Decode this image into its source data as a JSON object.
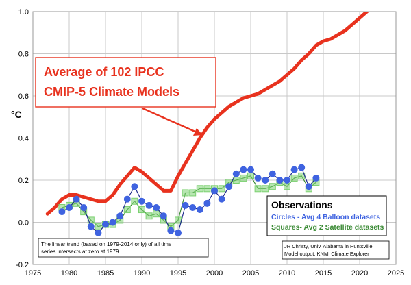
{
  "chart_data": {
    "type": "line",
    "ylabel": "°C",
    "xlim": [
      1975,
      2025
    ],
    "ylim": [
      -0.2,
      1.0
    ],
    "x_ticks": [
      "1975",
      "1980",
      "1985",
      "1990",
      "1995",
      "2000",
      "2005",
      "2010",
      "2015",
      "2020",
      "2025"
    ],
    "y_ticks": [
      "-0.2",
      "0.0",
      "0.2",
      "0.4",
      "0.6",
      "0.8",
      "1.0"
    ],
    "grid": true,
    "colors": {
      "models": "#e8321e",
      "balloons": "#3f63e0",
      "satellites": "#7cd171",
      "satellite_line": "#3a8a34",
      "balloon_line": "#1e2a8c"
    },
    "models_label": "Average of 102 IPCC\nCMIP-5 Climate Models",
    "series": [
      {
        "marker": "line",
        "x": [
          1977,
          1978,
          1979,
          1980,
          1981,
          1982,
          1983,
          1984,
          1985,
          1986,
          1987,
          1988,
          1989,
          1990,
          1991,
          1992,
          1993,
          1994,
          1995,
          1996,
          1997,
          1998,
          1999,
          2000,
          2001,
          2002,
          2003,
          2004,
          2005,
          2006,
          2007,
          2008,
          2009,
          2010,
          2011,
          2012,
          2013,
          2014,
          2015,
          2016,
          2017,
          2018,
          2019,
          2020,
          2021,
          2022
        ],
        "y": [
          0.04,
          0.07,
          0.11,
          0.13,
          0.13,
          0.12,
          0.11,
          0.1,
          0.1,
          0.13,
          0.18,
          0.22,
          0.26,
          0.24,
          0.21,
          0.18,
          0.15,
          0.15,
          0.22,
          0.28,
          0.34,
          0.4,
          0.45,
          0.49,
          0.52,
          0.55,
          0.57,
          0.59,
          0.6,
          0.61,
          0.63,
          0.65,
          0.67,
          0.7,
          0.73,
          0.77,
          0.8,
          0.84,
          0.86,
          0.87,
          0.89,
          0.91,
          0.94,
          0.97,
          1.0,
          1.03
        ]
      },
      {
        "marker": "circle",
        "x": [
          1979,
          1980,
          1981,
          1982,
          1983,
          1984,
          1985,
          1986,
          1987,
          1988,
          1989,
          1990,
          1991,
          1992,
          1993,
          1994,
          1995,
          1996,
          1997,
          1998,
          1999,
          2000,
          2001,
          2002,
          2003,
          2004,
          2005,
          2006,
          2007,
          2008,
          2009,
          2010,
          2011,
          2012,
          2013,
          2014
        ],
        "y": [
          0.05,
          0.07,
          0.11,
          0.07,
          -0.02,
          -0.05,
          -0.01,
          0.0,
          0.03,
          0.11,
          0.17,
          0.1,
          0.08,
          0.07,
          0.03,
          -0.04,
          -0.05,
          0.08,
          0.07,
          0.06,
          0.09,
          0.15,
          0.11,
          0.17,
          0.23,
          0.25,
          0.25,
          0.21,
          0.2,
          0.23,
          0.2,
          0.2,
          0.25,
          0.26,
          0.17,
          0.21
        ]
      },
      {
        "marker": "square",
        "x": [
          1979,
          1980,
          1981,
          1982,
          1983,
          1984,
          1985,
          1986,
          1987,
          1988,
          1989,
          1990,
          1991,
          1992,
          1993,
          1994,
          1995,
          1996,
          1997,
          1998,
          1999,
          2000,
          2001,
          2002,
          2003,
          2004,
          2005,
          2006,
          2007,
          2008,
          2009,
          2010,
          2011,
          2012,
          2013,
          2014
        ],
        "y": [
          0.07,
          0.08,
          0.09,
          0.05,
          0.01,
          -0.02,
          -0.01,
          -0.01,
          0.01,
          0.06,
          0.1,
          0.06,
          0.03,
          0.04,
          0.01,
          -0.02,
          0.01,
          0.14,
          0.14,
          0.16,
          0.16,
          0.16,
          0.16,
          0.19,
          0.2,
          0.21,
          0.22,
          0.16,
          0.16,
          0.17,
          0.19,
          0.17,
          0.21,
          0.22,
          0.16,
          0.19
        ]
      }
    ]
  },
  "legend": {
    "title": "Observations",
    "line1": "Circles - Avg 4 Balloon datasets",
    "line2": "Squares- Avg 2 Satellite datasets"
  },
  "note": {
    "line1": "The linear trend (based on 1979-2014 only) of all time",
    "line2": "series intersects at zero at 1979"
  },
  "credit": {
    "line1": "JR Christy, Univ. Alabama in Huntsville",
    "line2": "Model output: KNMI Climate Explorer"
  }
}
